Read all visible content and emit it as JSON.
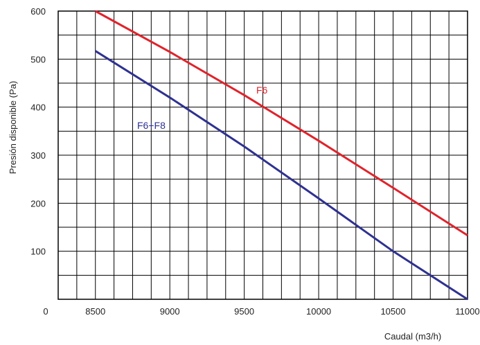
{
  "chart_data": {
    "type": "line",
    "xlabel": "Caudal (m3/h)",
    "ylabel": "Presión disponible (Pa)",
    "xlim": [
      8250,
      11000
    ],
    "ylim": [
      0,
      600
    ],
    "x_ticks": [
      8500,
      9000,
      9500,
      10000,
      10500,
      11000
    ],
    "x_tick_labels": [
      "8500",
      "9000",
      "9500",
      "10000",
      "10500",
      "11000"
    ],
    "y_ticks": [
      0,
      100,
      200,
      300,
      400,
      500,
      600
    ],
    "y_tick_labels": [
      "0",
      "100",
      "200",
      "300",
      "400",
      "500",
      "600"
    ],
    "grid": true,
    "series": [
      {
        "name": "F6",
        "color": "#e0232b",
        "x": [
          8500,
          9000,
          9500,
          10000,
          10500,
          11000
        ],
        "y": [
          600,
          515,
          425,
          330,
          232,
          133
        ]
      },
      {
        "name": "F6+F8",
        "color": "#2e3191",
        "x": [
          8500,
          9000,
          9500,
          10000,
          10500,
          11000
        ],
        "y": [
          517,
          420,
          318,
          210,
          100,
          0
        ]
      }
    ]
  }
}
